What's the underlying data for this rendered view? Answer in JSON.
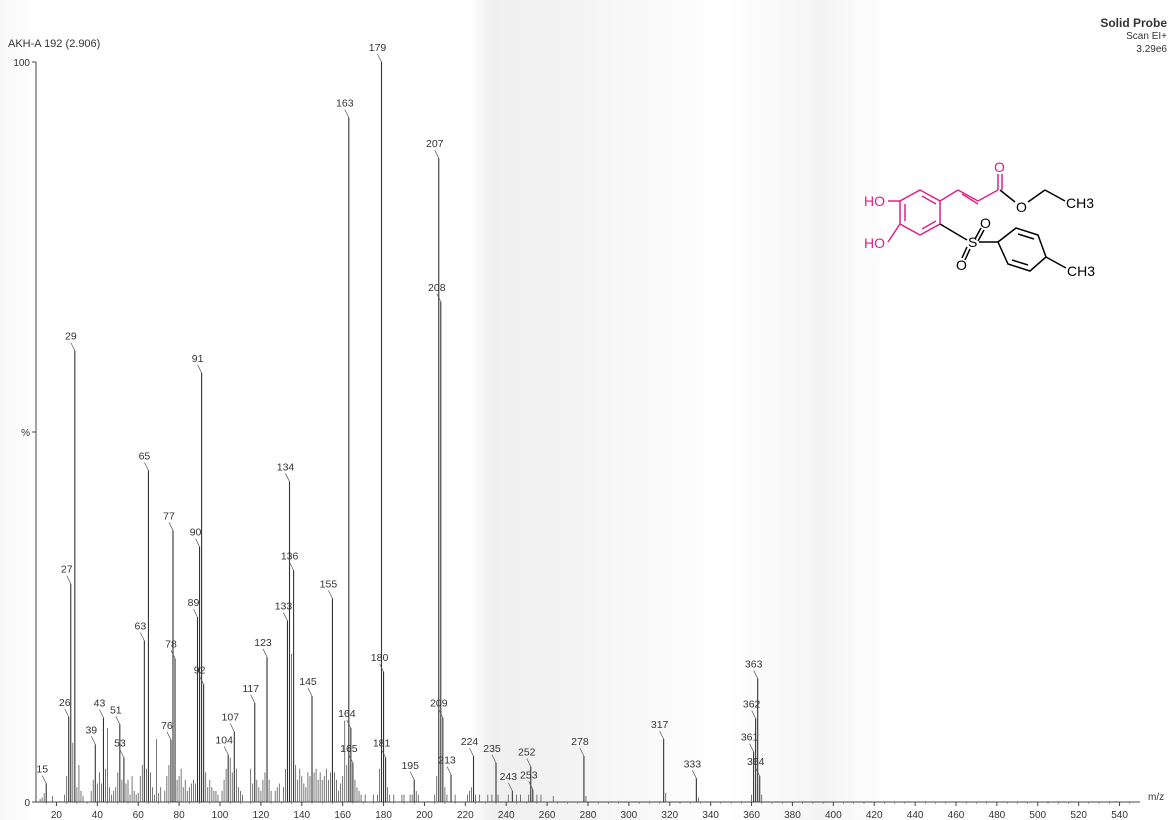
{
  "header": {
    "sample_id": "AKH-A 192 (2.906)",
    "probe_title": "Solid Probe",
    "scan_mode": "Scan EI+",
    "intensity": "3.29e6"
  },
  "chart_data": {
    "type": "bar",
    "title": "AKH-A 192 (2.906)",
    "xlabel": "m/z",
    "ylabel": "%",
    "xlim": [
      10,
      550
    ],
    "ylim": [
      0,
      100
    ],
    "x_ticks": [
      20,
      40,
      60,
      80,
      100,
      120,
      140,
      160,
      180,
      200,
      220,
      240,
      260,
      280,
      300,
      320,
      340,
      360,
      380,
      400,
      420,
      440,
      460,
      480,
      500,
      520,
      540
    ],
    "y_tick_labels": [
      "0",
      "%",
      "100"
    ],
    "grid": false,
    "peaks": [
      {
        "mz": 15,
        "value": 2.5,
        "label": "15"
      },
      {
        "mz": 26,
        "value": 11.5,
        "label": "26"
      },
      {
        "mz": 27,
        "value": 29.5,
        "label": "27"
      },
      {
        "mz": 29,
        "value": 61,
        "label": "29"
      },
      {
        "mz": 39,
        "value": 7.8,
        "label": "39"
      },
      {
        "mz": 43,
        "value": 11.4,
        "label": "43"
      },
      {
        "mz": 51,
        "value": 10.5,
        "label": "51"
      },
      {
        "mz": 53,
        "value": 6,
        "label": "53"
      },
      {
        "mz": 63,
        "value": 21.8,
        "label": "63"
      },
      {
        "mz": 65,
        "value": 44.8,
        "label": "65"
      },
      {
        "mz": 76,
        "value": 8.4,
        "label": "76"
      },
      {
        "mz": 77,
        "value": 36.7,
        "label": "77"
      },
      {
        "mz": 78,
        "value": 19.4,
        "label": "78"
      },
      {
        "mz": 89,
        "value": 25,
        "label": "89"
      },
      {
        "mz": 90,
        "value": 34.5,
        "label": "90"
      },
      {
        "mz": 91,
        "value": 58,
        "label": "91"
      },
      {
        "mz": 92,
        "value": 15.9,
        "label": "92"
      },
      {
        "mz": 104,
        "value": 6.4,
        "label": "104"
      },
      {
        "mz": 107,
        "value": 9.5,
        "label": "107"
      },
      {
        "mz": 117,
        "value": 13.4,
        "label": "117"
      },
      {
        "mz": 123,
        "value": 19.6,
        "label": "123"
      },
      {
        "mz": 133,
        "value": 24.5,
        "label": "133"
      },
      {
        "mz": 134,
        "value": 43.3,
        "label": "134"
      },
      {
        "mz": 136,
        "value": 31.3,
        "label": "136"
      },
      {
        "mz": 145,
        "value": 14.3,
        "label": "145"
      },
      {
        "mz": 155,
        "value": 27.5,
        "label": "155"
      },
      {
        "mz": 163,
        "value": 92.5,
        "label": "163"
      },
      {
        "mz": 164,
        "value": 10,
        "label": "164"
      },
      {
        "mz": 165,
        "value": 5.3,
        "label": "165"
      },
      {
        "mz": 179,
        "value": 100,
        "label": "179"
      },
      {
        "mz": 180,
        "value": 17.6,
        "label": "180"
      },
      {
        "mz": 181,
        "value": 6,
        "label": "181"
      },
      {
        "mz": 195,
        "value": 3,
        "label": "195"
      },
      {
        "mz": 207,
        "value": 87,
        "label": "207"
      },
      {
        "mz": 208,
        "value": 67.6,
        "label": "208"
      },
      {
        "mz": 209,
        "value": 11.4,
        "label": "209"
      },
      {
        "mz": 213,
        "value": 3.7,
        "label": "213"
      },
      {
        "mz": 224,
        "value": 6.2,
        "label": "224"
      },
      {
        "mz": 235,
        "value": 5.3,
        "label": "235"
      },
      {
        "mz": 243,
        "value": 1.5,
        "label": "243"
      },
      {
        "mz": 252,
        "value": 4.8,
        "label": "252"
      },
      {
        "mz": 253,
        "value": 1.7,
        "label": "253"
      },
      {
        "mz": 278,
        "value": 6.2,
        "label": "278"
      },
      {
        "mz": 317,
        "value": 8.5,
        "label": "317"
      },
      {
        "mz": 333,
        "value": 3.2,
        "label": "333"
      },
      {
        "mz": 361,
        "value": 6.8,
        "label": "361"
      },
      {
        "mz": 362,
        "value": 11.3,
        "label": "362"
      },
      {
        "mz": 363,
        "value": 16.7,
        "label": "363"
      },
      {
        "mz": 364,
        "value": 3.5,
        "label": "364"
      }
    ],
    "minor_peaks": [
      {
        "mz": 12,
        "value": 0.4
      },
      {
        "mz": 13,
        "value": 0.6
      },
      {
        "mz": 14,
        "value": 1.2
      },
      {
        "mz": 18,
        "value": 0.8
      },
      {
        "mz": 24,
        "value": 1.0
      },
      {
        "mz": 25,
        "value": 3.5
      },
      {
        "mz": 28,
        "value": 8.0
      },
      {
        "mz": 30,
        "value": 2.0
      },
      {
        "mz": 31,
        "value": 5.0
      },
      {
        "mz": 32,
        "value": 1.5
      },
      {
        "mz": 33,
        "value": 0.8
      },
      {
        "mz": 37,
        "value": 1.5
      },
      {
        "mz": 38,
        "value": 3.0
      },
      {
        "mz": 40,
        "value": 2.5
      },
      {
        "mz": 41,
        "value": 4.0
      },
      {
        "mz": 42,
        "value": 2.5
      },
      {
        "mz": 44,
        "value": 4.5
      },
      {
        "mz": 45,
        "value": 10.0
      },
      {
        "mz": 46,
        "value": 2.0
      },
      {
        "mz": 47,
        "value": 1.0
      },
      {
        "mz": 48,
        "value": 1.5
      },
      {
        "mz": 49,
        "value": 2.0
      },
      {
        "mz": 50,
        "value": 4.0
      },
      {
        "mz": 52,
        "value": 3.0
      },
      {
        "mz": 54,
        "value": 2.5
      },
      {
        "mz": 55,
        "value": 3.0
      },
      {
        "mz": 56,
        "value": 1.0
      },
      {
        "mz": 57,
        "value": 3.5
      },
      {
        "mz": 58,
        "value": 1.5
      },
      {
        "mz": 59,
        "value": 1.0
      },
      {
        "mz": 60,
        "value": 1.2
      },
      {
        "mz": 61,
        "value": 3.5
      },
      {
        "mz": 62,
        "value": 5.0
      },
      {
        "mz": 64,
        "value": 4.5
      },
      {
        "mz": 66,
        "value": 4.0
      },
      {
        "mz": 67,
        "value": 2.0
      },
      {
        "mz": 68,
        "value": 1.0
      },
      {
        "mz": 69,
        "value": 8.5
      },
      {
        "mz": 70,
        "value": 1.2
      },
      {
        "mz": 71,
        "value": 2.0
      },
      {
        "mz": 73,
        "value": 1.5
      },
      {
        "mz": 74,
        "value": 3.5
      },
      {
        "mz": 75,
        "value": 5.0
      },
      {
        "mz": 79,
        "value": 3.0
      },
      {
        "mz": 80,
        "value": 3.5
      },
      {
        "mz": 81,
        "value": 4.5
      },
      {
        "mz": 82,
        "value": 2.0
      },
      {
        "mz": 83,
        "value": 3.0
      },
      {
        "mz": 84,
        "value": 1.5
      },
      {
        "mz": 85,
        "value": 2.0
      },
      {
        "mz": 86,
        "value": 2.5
      },
      {
        "mz": 87,
        "value": 3.0
      },
      {
        "mz": 88,
        "value": 2.5
      },
      {
        "mz": 93,
        "value": 4.0
      },
      {
        "mz": 94,
        "value": 2.0
      },
      {
        "mz": 95,
        "value": 3.0
      },
      {
        "mz": 96,
        "value": 2.0
      },
      {
        "mz": 97,
        "value": 1.5
      },
      {
        "mz": 98,
        "value": 1.5
      },
      {
        "mz": 99,
        "value": 1.0
      },
      {
        "mz": 101,
        "value": 1.5
      },
      {
        "mz": 102,
        "value": 3.0
      },
      {
        "mz": 103,
        "value": 4.5
      },
      {
        "mz": 105,
        "value": 6.0
      },
      {
        "mz": 106,
        "value": 4.0
      },
      {
        "mz": 108,
        "value": 4.5
      },
      {
        "mz": 109,
        "value": 2.0
      },
      {
        "mz": 110,
        "value": 1.5
      },
      {
        "mz": 111,
        "value": 1.0
      },
      {
        "mz": 115,
        "value": 4.5
      },
      {
        "mz": 116,
        "value": 2.5
      },
      {
        "mz": 118,
        "value": 3.0
      },
      {
        "mz": 119,
        "value": 2.0
      },
      {
        "mz": 120,
        "value": 1.5
      },
      {
        "mz": 121,
        "value": 3.0
      },
      {
        "mz": 122,
        "value": 4.0
      },
      {
        "mz": 124,
        "value": 3.0
      },
      {
        "mz": 125,
        "value": 1.5
      },
      {
        "mz": 127,
        "value": 1.5
      },
      {
        "mz": 128,
        "value": 2.0
      },
      {
        "mz": 129,
        "value": 2.5
      },
      {
        "mz": 131,
        "value": 2.0
      },
      {
        "mz": 132,
        "value": 4.5
      },
      {
        "mz": 135,
        "value": 20.0
      },
      {
        "mz": 137,
        "value": 5.0
      },
      {
        "mz": 138,
        "value": 3.0
      },
      {
        "mz": 139,
        "value": 4.5
      },
      {
        "mz": 140,
        "value": 3.5
      },
      {
        "mz": 141,
        "value": 2.5
      },
      {
        "mz": 142,
        "value": 2.0
      },
      {
        "mz": 143,
        "value": 4.0
      },
      {
        "mz": 144,
        "value": 3.5
      },
      {
        "mz": 146,
        "value": 4.0
      },
      {
        "mz": 147,
        "value": 4.5
      },
      {
        "mz": 148,
        "value": 3.0
      },
      {
        "mz": 149,
        "value": 4.0
      },
      {
        "mz": 150,
        "value": 3.0
      },
      {
        "mz": 151,
        "value": 3.5
      },
      {
        "mz": 152,
        "value": 4.5
      },
      {
        "mz": 153,
        "value": 3.0
      },
      {
        "mz": 154,
        "value": 4.0
      },
      {
        "mz": 156,
        "value": 4.0
      },
      {
        "mz": 157,
        "value": 3.0
      },
      {
        "mz": 158,
        "value": 1.5
      },
      {
        "mz": 159,
        "value": 2.5
      },
      {
        "mz": 160,
        "value": 3.5
      },
      {
        "mz": 161,
        "value": 11.0
      },
      {
        "mz": 162,
        "value": 5.0
      },
      {
        "mz": 166,
        "value": 3.0
      },
      {
        "mz": 167,
        "value": 2.0
      },
      {
        "mz": 168,
        "value": 1.5
      },
      {
        "mz": 169,
        "value": 1.0
      },
      {
        "mz": 171,
        "value": 1.0
      },
      {
        "mz": 175,
        "value": 1.0
      },
      {
        "mz": 177,
        "value": 1.0
      },
      {
        "mz": 178,
        "value": 4.5
      },
      {
        "mz": 182,
        "value": 2.0
      },
      {
        "mz": 183,
        "value": 1.0
      },
      {
        "mz": 185,
        "value": 1.0
      },
      {
        "mz": 189,
        "value": 1.0
      },
      {
        "mz": 190,
        "value": 1.0
      },
      {
        "mz": 193,
        "value": 1.0
      },
      {
        "mz": 194,
        "value": 1.0
      },
      {
        "mz": 196,
        "value": 1.5
      },
      {
        "mz": 197,
        "value": 1.0
      },
      {
        "mz": 205,
        "value": 1.0
      },
      {
        "mz": 206,
        "value": 3.5
      },
      {
        "mz": 210,
        "value": 2.0
      },
      {
        "mz": 211,
        "value": 1.0
      },
      {
        "mz": 215,
        "value": 1.0
      },
      {
        "mz": 221,
        "value": 1.0
      },
      {
        "mz": 222,
        "value": 1.5
      },
      {
        "mz": 223,
        "value": 2.0
      },
      {
        "mz": 225,
        "value": 1.0
      },
      {
        "mz": 227,
        "value": 1.0
      },
      {
        "mz": 231,
        "value": 1.0
      },
      {
        "mz": 233,
        "value": 1.0
      },
      {
        "mz": 236,
        "value": 1.0
      },
      {
        "mz": 241,
        "value": 1.0
      },
      {
        "mz": 245,
        "value": 1.0
      },
      {
        "mz": 247,
        "value": 1.0
      },
      {
        "mz": 251,
        "value": 1.0
      },
      {
        "mz": 255,
        "value": 1.0
      },
      {
        "mz": 257,
        "value": 1.0
      },
      {
        "mz": 263,
        "value": 0.8
      },
      {
        "mz": 279,
        "value": 0.8
      },
      {
        "mz": 318,
        "value": 1.2
      },
      {
        "mz": 334,
        "value": 0.6
      },
      {
        "mz": 360,
        "value": 1.0
      },
      {
        "mz": 365,
        "value": 1.0
      }
    ]
  },
  "structure": {
    "color_highlight": "#e0218a",
    "color_base": "#000000",
    "labels": {
      "ho_top": "HO",
      "ho_bottom": "HO",
      "carbonyl_o": "O",
      "ester_o": "O",
      "ethyl_ch3": "CH3",
      "sulfur": "S",
      "sulfonyl_o_top": "O",
      "sulfonyl_o_bottom": "O",
      "tolyl_ch3": "CH3"
    }
  }
}
